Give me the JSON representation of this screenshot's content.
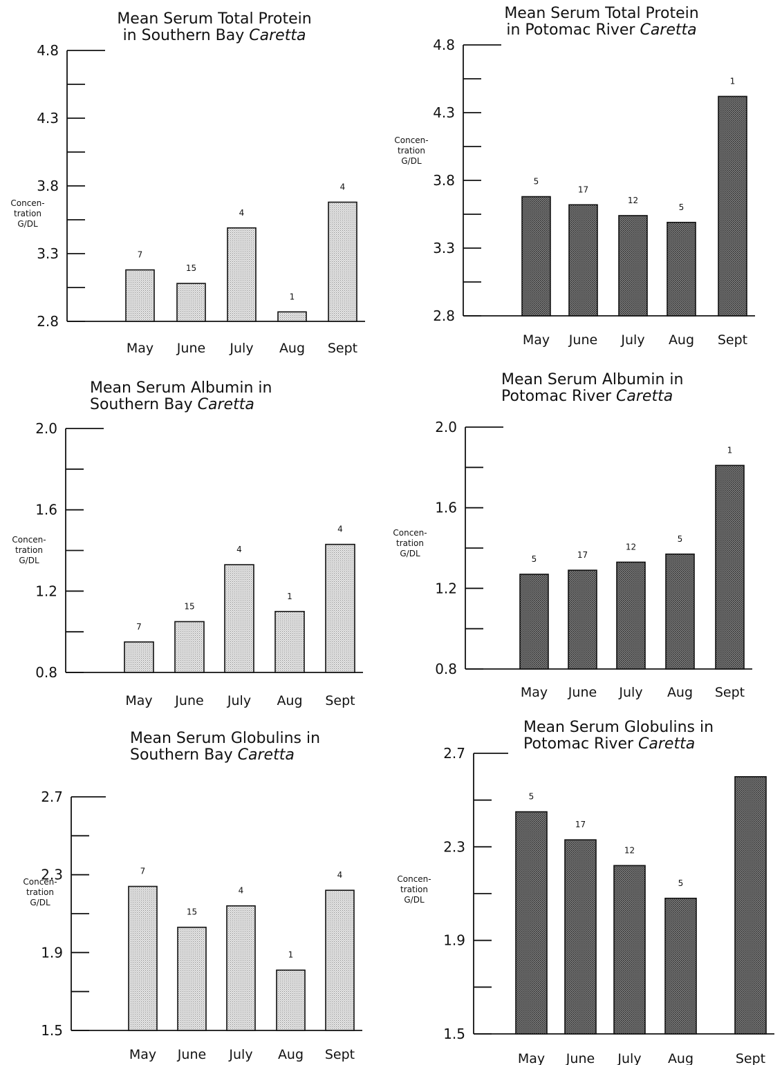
{
  "chart_data": [
    {
      "type": "bar",
      "title_line1": "Mean Serum Total Protein",
      "title_line2_plain": "in Southern Bay ",
      "title_line2_italic": "Caretta",
      "ylabel": [
        "Concen-",
        "tration",
        "G/DL"
      ],
      "categories": [
        "May",
        "June",
        "July",
        "Aug",
        "Sept"
      ],
      "values": [
        3.18,
        3.08,
        3.49,
        2.87,
        3.68
      ],
      "n_labels": [
        "7",
        "15",
        "4",
        "1",
        "4"
      ],
      "ylim": [
        2.8,
        4.8
      ],
      "yticks": [
        2.8,
        3.3,
        3.8,
        4.3,
        4.8
      ],
      "ytick_labels": [
        "2.8",
        "3.3",
        "3.8",
        "4.3",
        "4.8"
      ],
      "minor_ticks": [
        3.05,
        3.55,
        4.05,
        4.55
      ],
      "bar_fill": "#d4d4d4"
    },
    {
      "type": "bar",
      "title_line1": "Mean Serum Total Protein",
      "title_line2_plain": "in Potomac River ",
      "title_line2_italic": "Caretta",
      "ylabel": [
        "Concen-",
        "tration",
        "G/DL"
      ],
      "categories": [
        "May",
        "June",
        "July",
        "Aug",
        "Sept"
      ],
      "values": [
        3.68,
        3.62,
        3.54,
        3.49,
        4.42
      ],
      "n_labels": [
        "5",
        "17",
        "12",
        "5",
        "1"
      ],
      "ylim": [
        2.8,
        4.8
      ],
      "yticks": [
        2.8,
        3.3,
        3.8,
        4.3,
        4.8
      ],
      "ytick_labels": [
        "2.8",
        "3.3",
        "3.8",
        "4.3",
        "4.8"
      ],
      "minor_ticks": [
        3.05,
        3.55,
        4.05,
        4.55
      ],
      "bar_fill": "#7a7a7a"
    },
    {
      "type": "bar",
      "title_line1": "Mean Serum Albumin in",
      "title_line2_plain": "Southern Bay ",
      "title_line2_italic": "Caretta",
      "ylabel": [
        "Concen-",
        "tration",
        "G/DL"
      ],
      "categories": [
        "May",
        "June",
        "July",
        "Aug",
        "Sept"
      ],
      "values": [
        0.95,
        1.05,
        1.33,
        1.1,
        1.43
      ],
      "n_labels": [
        "7",
        "15",
        "4",
        "1",
        "4"
      ],
      "ylim": [
        0.8,
        2.0
      ],
      "yticks": [
        0.8,
        1.2,
        1.6,
        2.0
      ],
      "ytick_labels": [
        "0.8",
        "1.2",
        "1.6",
        "2.0"
      ],
      "minor_ticks": [
        1.0,
        1.4,
        1.8
      ],
      "bar_fill": "#d4d4d4"
    },
    {
      "type": "bar",
      "title_line1": "Mean Serum Albumin in",
      "title_line2_plain": "Potomac River ",
      "title_line2_italic": "Caretta",
      "ylabel": [
        "Concen-",
        "tration",
        "G/DL"
      ],
      "categories": [
        "May",
        "June",
        "July",
        "Aug",
        "Sept"
      ],
      "values": [
        1.27,
        1.29,
        1.33,
        1.37,
        1.81
      ],
      "n_labels": [
        "5",
        "17",
        "12",
        "5",
        "1"
      ],
      "ylim": [
        0.8,
        2.0
      ],
      "yticks": [
        0.8,
        1.2,
        1.6,
        2.0
      ],
      "ytick_labels": [
        "0.8",
        "1.2",
        "1.6",
        "2.0"
      ],
      "minor_ticks": [
        1.0,
        1.4,
        1.8
      ],
      "bar_fill": "#7a7a7a"
    },
    {
      "type": "bar",
      "title_line1": "Mean Serum Globulins in",
      "title_line2_plain": "Southern Bay ",
      "title_line2_italic": "Caretta",
      "ylabel": [
        "Concen-",
        "tration",
        "G/DL"
      ],
      "categories": [
        "May",
        "June",
        "July",
        "Aug",
        "Sept"
      ],
      "values": [
        2.24,
        2.03,
        2.14,
        1.81,
        2.22
      ],
      "n_labels": [
        "7",
        "15",
        "4",
        "1",
        "4"
      ],
      "ylim": [
        1.5,
        2.7
      ],
      "yticks": [
        1.5,
        1.9,
        2.3,
        2.7
      ],
      "ytick_labels": [
        "1.5",
        "1.9",
        "2.3",
        "2.7"
      ],
      "minor_ticks": [
        1.7,
        2.1,
        2.5
      ],
      "bar_fill": "#d4d4d4"
    },
    {
      "type": "bar",
      "title_line1": "Mean Serum Globulins in",
      "title_line2_plain": "Potomac River ",
      "title_line2_italic": "Caretta",
      "ylabel": [
        "Concen-",
        "tration",
        "G/DL"
      ],
      "categories": [
        "May",
        "June",
        "July",
        "Aug",
        "Sept"
      ],
      "values": [
        2.45,
        2.33,
        2.22,
        2.08,
        2.6
      ],
      "n_labels": [
        "5",
        "17",
        "12",
        "5",
        ""
      ],
      "ylim": [
        1.5,
        2.7
      ],
      "yticks": [
        1.5,
        1.9,
        2.3,
        2.7
      ],
      "ytick_labels": [
        "1.5",
        "1.9",
        "2.3",
        "2.7"
      ],
      "minor_ticks": [
        1.7,
        2.1,
        2.5
      ],
      "bar_fill": "#7a7a7a"
    }
  ]
}
